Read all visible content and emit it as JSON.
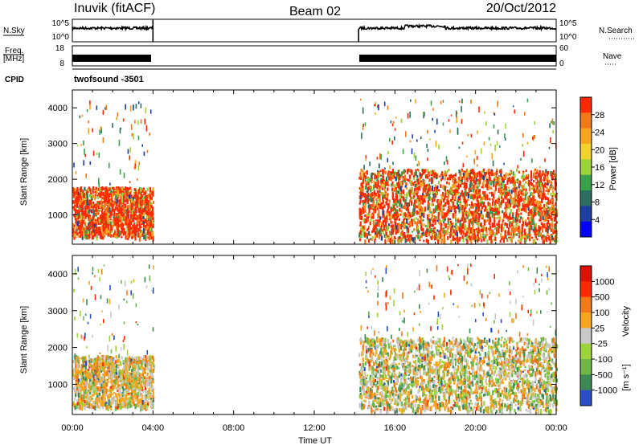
{
  "header": {
    "station": "Inuvik (fitACF)",
    "beam": "Beam 02",
    "date": "20/Oct/2012"
  },
  "noise_panel": {
    "left_label": "N.Sky",
    "left_ticks": [
      "10^5",
      "10^0"
    ],
    "right_ticks": [
      "10^5",
      "10^0"
    ],
    "right_label": "N.Search"
  },
  "freq_panel": {
    "left_label_1": "Freq.",
    "left_label_2": "[MHz]",
    "left_ticks": [
      "18",
      "8"
    ],
    "right_ticks": [
      "60",
      "0"
    ],
    "right_label": "Nave"
  },
  "cpid": {
    "label": "CPID",
    "value": "twofsound -3501"
  },
  "chart_data": [
    {
      "type": "heatmap",
      "panel": "power",
      "ylabel": "Slant Range [km]",
      "yticks": [
        "1000",
        "2000",
        "3000",
        "4000"
      ],
      "ylim": [
        180,
        4500
      ],
      "colorbar": {
        "label": "Power [dB]",
        "ticks": [
          "28",
          "24",
          "20",
          "16",
          "12",
          "8",
          "4"
        ],
        "range": [
          0,
          32
        ],
        "colors": [
          "#0000ff",
          "#1e3fa0",
          "#2c6f60",
          "#3aa04a",
          "#9ed23a",
          "#f2d22e",
          "#f7a41e",
          "#f07a1a",
          "#ff2a00"
        ]
      },
      "data_blocks": [
        {
          "t_start": 0.0,
          "t_end": 4.0,
          "range_min": 400,
          "range_max": 1800,
          "dominant": "28+"
        },
        {
          "t_start": 14.2,
          "t_end": 24.0,
          "range_min": 300,
          "range_max": 2300,
          "dominant": "24-28"
        }
      ]
    },
    {
      "type": "heatmap",
      "panel": "velocity",
      "ylabel": "Slant Range [km]",
      "yticks": [
        "1000",
        "2000",
        "3000",
        "4000"
      ],
      "ylim": [
        180,
        4500
      ],
      "colorbar": {
        "label": "Velocity",
        "unit": "[m s⁻¹]",
        "ticks": [
          "1000",
          "500",
          "100",
          "25",
          "-25",
          "-100",
          "-500",
          "-1000"
        ],
        "colors": [
          "#2a4ec8",
          "#3c8a55",
          "#6fb848",
          "#9ed23a",
          "#c8c8c8",
          "#f7a41e",
          "#f07a1a",
          "#ff2a00",
          "#e01000"
        ]
      },
      "data_blocks": [
        {
          "t_start": 0.0,
          "t_end": 4.0,
          "range_min": 400,
          "range_max": 1800,
          "dominant": "ground scatter / -100"
        },
        {
          "t_start": 14.2,
          "t_end": 24.0,
          "range_min": 300,
          "range_max": 2300,
          "dominant": "100 / -100"
        }
      ]
    }
  ],
  "x_axis": {
    "label": "Time UT",
    "ticks": [
      "00:00",
      "04:00",
      "08:00",
      "12:00",
      "16:00",
      "20:00",
      "00:00"
    ],
    "range_hours": [
      0,
      24
    ]
  }
}
